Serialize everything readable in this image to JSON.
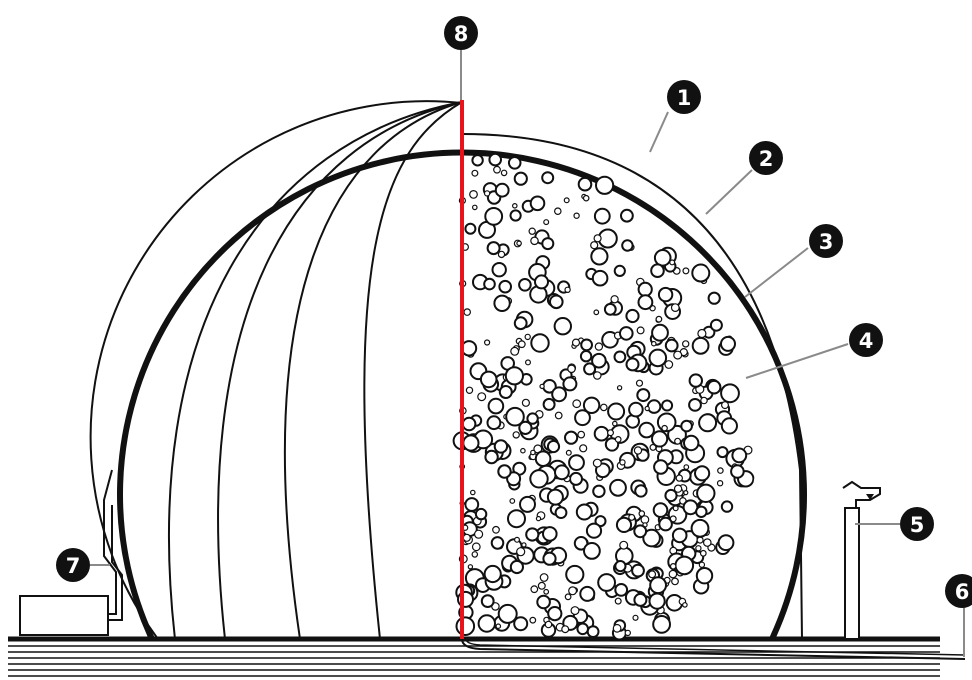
{
  "callouts": [
    {
      "id": "1",
      "label": "1"
    },
    {
      "id": "2",
      "label": "2"
    },
    {
      "id": "3",
      "label": "3"
    },
    {
      "id": "4",
      "label": "4"
    },
    {
      "id": "5",
      "label": "5"
    },
    {
      "id": "6",
      "label": "6"
    },
    {
      "id": "7",
      "label": "7"
    },
    {
      "id": "8",
      "label": "8"
    }
  ],
  "colors": {
    "line": "#111111",
    "accent": "#e8141c",
    "leader": "#8a8a8a",
    "badge": "#111111"
  }
}
